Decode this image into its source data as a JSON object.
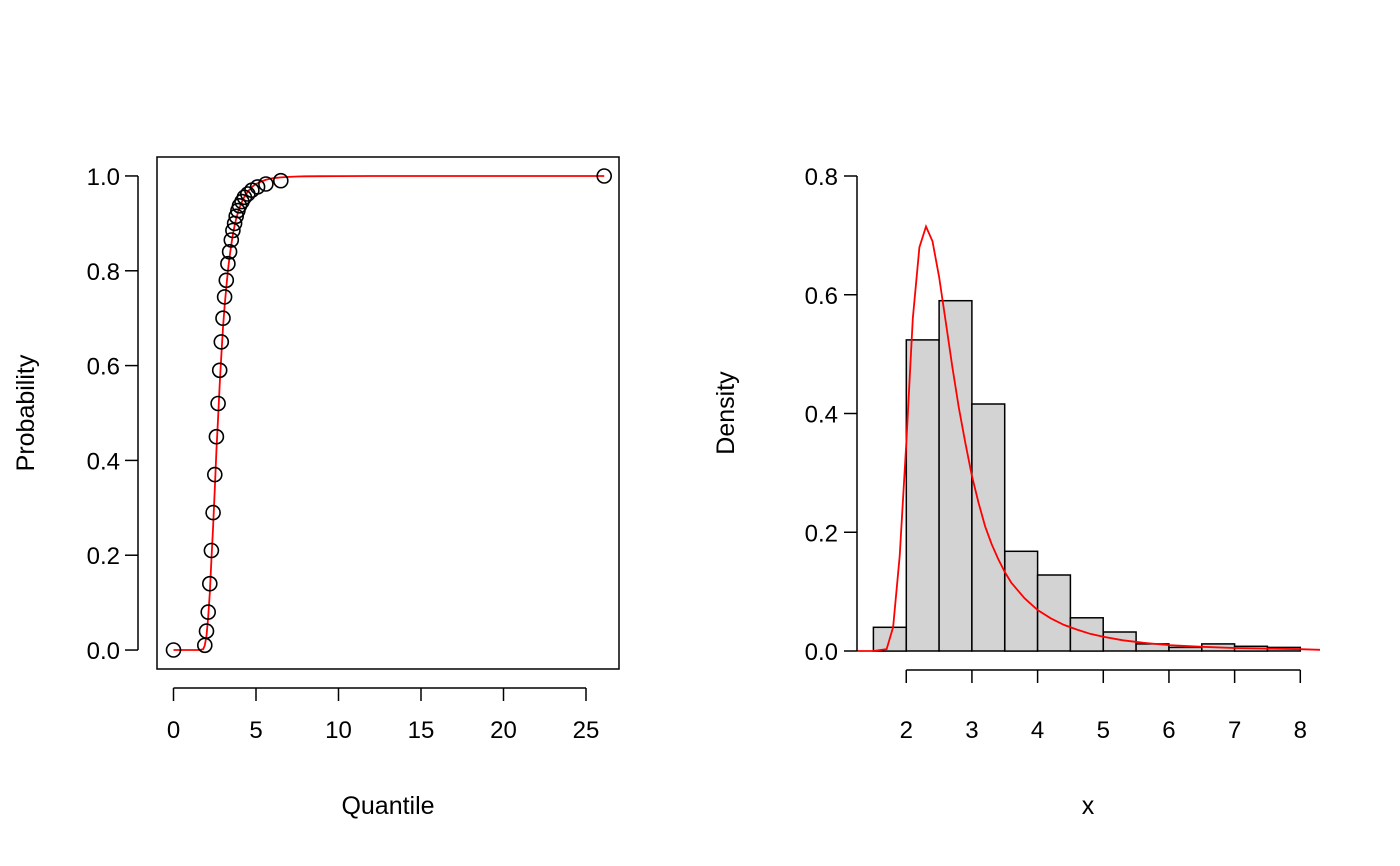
{
  "chart_data": [
    {
      "type": "scatter",
      "title": "",
      "xlabel": "Quantile",
      "ylabel": "Probability",
      "xlim": [
        -1,
        27
      ],
      "ylim": [
        -0.04,
        1.04
      ],
      "xticks": [
        0,
        5,
        10,
        15,
        20,
        25
      ],
      "yticks": [
        0.0,
        0.2,
        0.4,
        0.6,
        0.8,
        1.0
      ],
      "xtick_labels": [
        "0",
        "5",
        "10",
        "15",
        "20",
        "25"
      ],
      "ytick_labels": [
        "0.0",
        "0.2",
        "0.4",
        "0.6",
        "0.8",
        "1.0"
      ],
      "grid": false,
      "box": true,
      "points": {
        "x": [
          0,
          1.9,
          2.0,
          2.1,
          2.2,
          2.3,
          2.4,
          2.5,
          2.6,
          2.7,
          2.8,
          2.9,
          3.0,
          3.1,
          3.2,
          3.3,
          3.4,
          3.5,
          3.6,
          3.7,
          3.8,
          3.9,
          4.0,
          4.15,
          4.3,
          4.5,
          4.75,
          5.1,
          5.6,
          6.5,
          26.1
        ],
        "y": [
          0.0,
          0.01,
          0.04,
          0.08,
          0.14,
          0.21,
          0.29,
          0.37,
          0.45,
          0.52,
          0.59,
          0.65,
          0.7,
          0.745,
          0.78,
          0.815,
          0.84,
          0.865,
          0.885,
          0.9,
          0.915,
          0.927,
          0.937,
          0.946,
          0.955,
          0.962,
          0.97,
          0.977,
          0.983,
          0.99,
          1.0
        ],
        "color": "#000000"
      },
      "curve": {
        "x": [
          0,
          1.6,
          1.8,
          1.9,
          2.0,
          2.1,
          2.2,
          2.3,
          2.4,
          2.5,
          2.6,
          2.7,
          2.8,
          2.9,
          3.0,
          3.1,
          3.2,
          3.3,
          3.4,
          3.5,
          3.6,
          3.7,
          3.8,
          3.9,
          4.0,
          4.2,
          4.4,
          4.6,
          4.8,
          5.0,
          5.3,
          5.6,
          6.0,
          6.5,
          7.0,
          7.5,
          8.0,
          9.0,
          10,
          12,
          15,
          20,
          26.1
        ],
        "y": [
          0.0,
          0.0,
          0.002,
          0.01,
          0.03,
          0.07,
          0.12,
          0.19,
          0.26,
          0.34,
          0.42,
          0.49,
          0.56,
          0.62,
          0.68,
          0.725,
          0.765,
          0.8,
          0.83,
          0.855,
          0.877,
          0.895,
          0.91,
          0.922,
          0.933,
          0.95,
          0.962,
          0.971,
          0.978,
          0.983,
          0.988,
          0.992,
          0.995,
          0.997,
          0.998,
          0.9988,
          0.9992,
          0.9996,
          0.9998,
          1.0,
          1.0,
          1.0,
          1.0
        ],
        "color": "#ff0000"
      }
    },
    {
      "type": "bar",
      "title": "",
      "xlabel": "x",
      "ylabel": "Density",
      "xlim": [
        1.25,
        8.3
      ],
      "ylim": [
        0,
        0.8
      ],
      "xticks": [
        2,
        3,
        4,
        5,
        6,
        7,
        8
      ],
      "yticks": [
        0.0,
        0.2,
        0.4,
        0.6,
        0.8
      ],
      "xtick_labels": [
        "2",
        "3",
        "4",
        "5",
        "6",
        "7",
        "8"
      ],
      "ytick_labels": [
        "0.0",
        "0.2",
        "0.4",
        "0.6",
        "0.8"
      ],
      "grid": false,
      "box": false,
      "bins": [
        {
          "x0": 1.5,
          "x1": 2.0,
          "density": 0.04
        },
        {
          "x0": 2.0,
          "x1": 2.5,
          "density": 0.524
        },
        {
          "x0": 2.5,
          "x1": 3.0,
          "density": 0.59
        },
        {
          "x0": 3.0,
          "x1": 3.5,
          "density": 0.416
        },
        {
          "x0": 3.5,
          "x1": 4.0,
          "density": 0.168
        },
        {
          "x0": 4.0,
          "x1": 4.5,
          "density": 0.128
        },
        {
          "x0": 4.5,
          "x1": 5.0,
          "density": 0.056
        },
        {
          "x0": 5.0,
          "x1": 5.5,
          "density": 0.032
        },
        {
          "x0": 5.5,
          "x1": 6.0,
          "density": 0.012
        },
        {
          "x0": 6.0,
          "x1": 6.5,
          "density": 0.006
        },
        {
          "x0": 6.5,
          "x1": 7.0,
          "density": 0.012
        },
        {
          "x0": 7.0,
          "x1": 7.5,
          "density": 0.008
        },
        {
          "x0": 7.5,
          "x1": 8.0,
          "density": 0.006
        }
      ],
      "bar_fill": "#d3d3d3",
      "bar_stroke": "#000000",
      "curve": {
        "x": [
          1.25,
          1.5,
          1.7,
          1.8,
          1.9,
          2.0,
          2.1,
          2.2,
          2.3,
          2.4,
          2.5,
          2.6,
          2.7,
          2.8,
          2.9,
          3.0,
          3.1,
          3.2,
          3.3,
          3.4,
          3.5,
          3.6,
          3.8,
          4.0,
          4.2,
          4.4,
          4.6,
          4.8,
          5.0,
          5.3,
          5.6,
          6.0,
          6.5,
          7.0,
          7.5,
          8.0,
          8.3
        ],
        "y": [
          0.0,
          0.0,
          0.003,
          0.04,
          0.16,
          0.35,
          0.56,
          0.68,
          0.715,
          0.69,
          0.63,
          0.555,
          0.48,
          0.41,
          0.35,
          0.295,
          0.25,
          0.21,
          0.18,
          0.155,
          0.133,
          0.115,
          0.089,
          0.069,
          0.055,
          0.044,
          0.036,
          0.029,
          0.024,
          0.018,
          0.014,
          0.01,
          0.007,
          0.005,
          0.004,
          0.003,
          0.002
        ],
        "color": "#ff0000"
      }
    }
  ]
}
